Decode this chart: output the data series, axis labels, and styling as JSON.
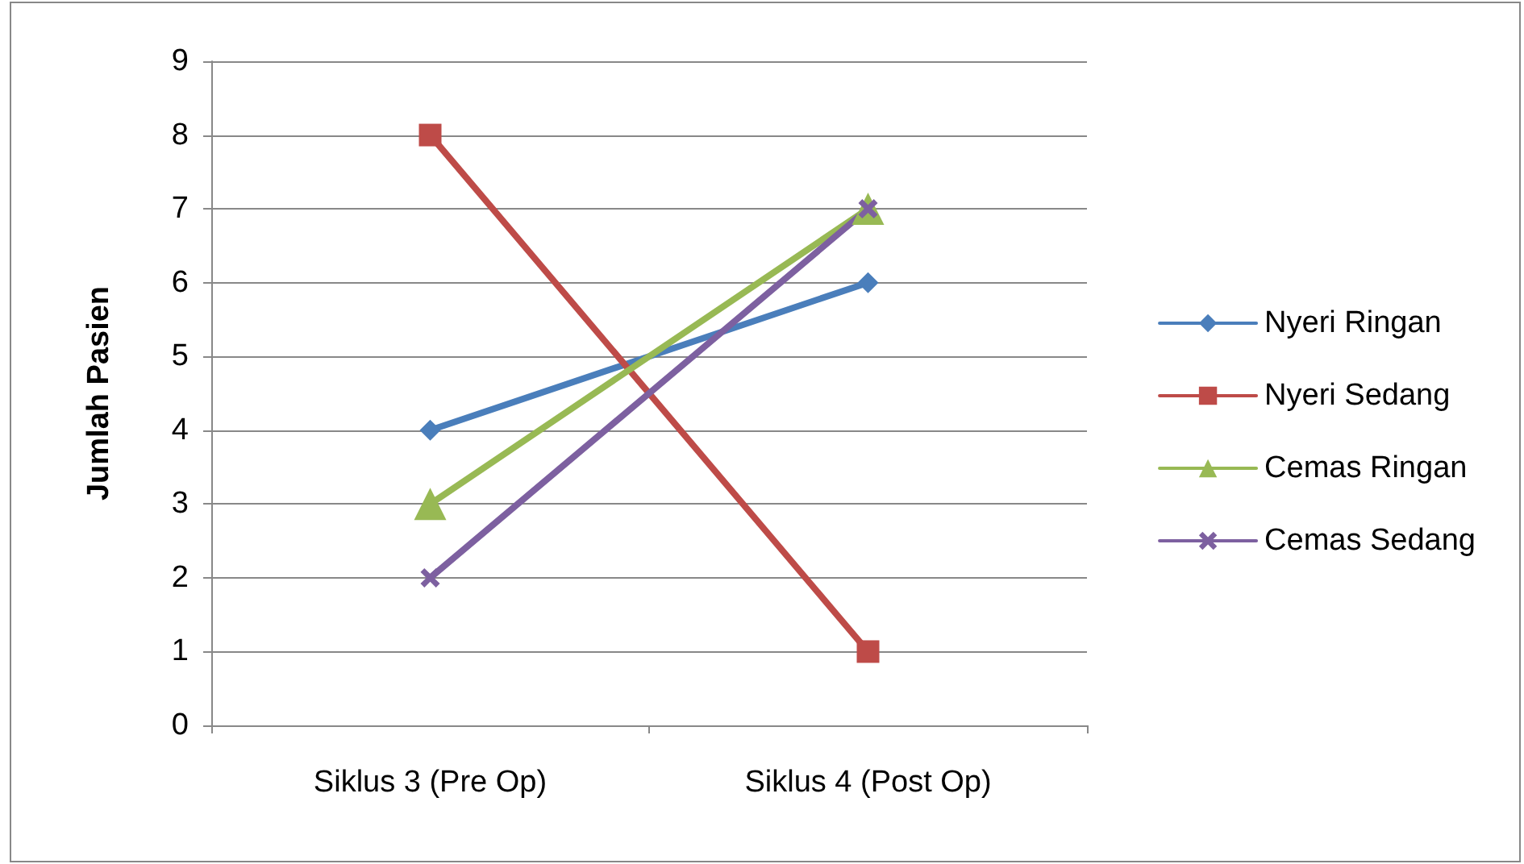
{
  "chart_data": {
    "type": "line",
    "ylabel": "Jumlah Pasien",
    "categories": [
      "Siklus 3 (Pre Op)",
      "Siklus 4 (Post Op)"
    ],
    "series": [
      {
        "name": "Nyeri Ringan",
        "color": "#4a7ebb",
        "values": [
          4,
          6
        ],
        "marker": "diamond"
      },
      {
        "name": "Nyeri Sedang",
        "color": "#be4b48",
        "values": [
          8,
          1
        ],
        "marker": "square"
      },
      {
        "name": "Cemas Ringan",
        "color": "#98b954",
        "values": [
          3,
          7
        ],
        "marker": "triangle"
      },
      {
        "name": "Cemas Sedang",
        "color": "#7d60a0",
        "values": [
          2,
          7
        ],
        "marker": "cross"
      }
    ],
    "ylim": [
      0,
      9
    ],
    "yticks": [
      0,
      1,
      2,
      3,
      4,
      5,
      6,
      7,
      8,
      9
    ],
    "grid": "y",
    "legend": "right",
    "line_style": "solid"
  }
}
